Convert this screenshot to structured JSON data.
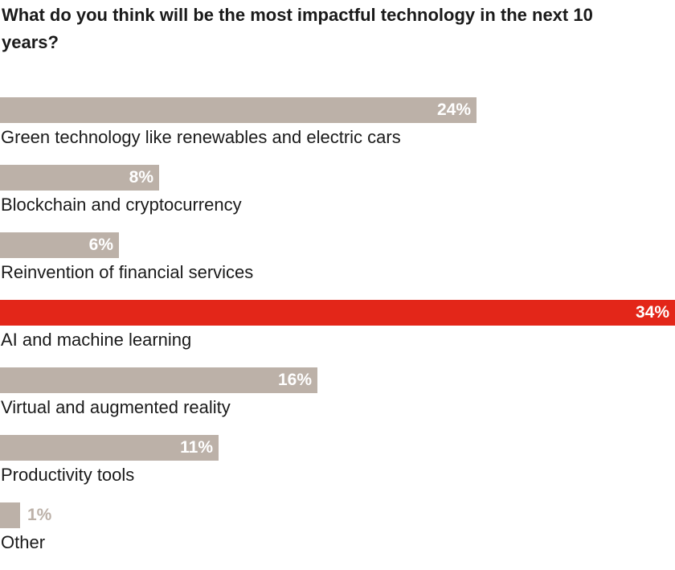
{
  "chart_data": {
    "type": "bar",
    "orientation": "horizontal",
    "title": "What do you think will be the most impactful technology in the next 10 years?",
    "xlim": [
      0,
      34
    ],
    "grid": false,
    "legend": "none",
    "value_suffix": "%",
    "categories": [
      "Green technology like renewables and electric cars",
      "Blockchain and cryptocurrency",
      "Reinvention of financial services",
      "AI and machine learning",
      "Virtual and augmented reality",
      "Productivity tools",
      "Other"
    ],
    "values": [
      24,
      8,
      6,
      34,
      16,
      11,
      1
    ],
    "labels": [
      "24%",
      "8%",
      "6%",
      "34%",
      "16%",
      "11%",
      "1%"
    ],
    "highlight_index": 3,
    "colors": {
      "bar": "#bcb1a8",
      "highlight": "#e32619",
      "label_inside": "#ffffff",
      "label_outside": "#bcb1a8",
      "text": "#1a1a1a"
    }
  }
}
